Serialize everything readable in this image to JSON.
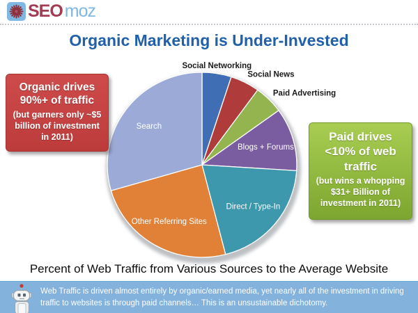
{
  "header": {
    "logo": {
      "icon": "gear-burst",
      "seo": "SEO",
      "moz": "moz"
    }
  },
  "title": "Organic Marketing is Under-Invested",
  "callouts": {
    "organic": {
      "heading": "Organic drives 90%+ of traffic",
      "subtext": "(but garners only ~$5 billion of investment in 2011)",
      "bg_color": "#c64444",
      "border_color": "#a93333"
    },
    "paid": {
      "heading": "Paid drives <10% of web traffic",
      "subtext": "(but wins a whopping $31+ Billion of investment in 2011)",
      "bg_color": "#8fba3f",
      "border_color": "#719729"
    }
  },
  "chart_data": {
    "type": "pie",
    "title": "Percent of Web Traffic from Various Sources to the Average Website",
    "start_angle_deg": 0,
    "direction": "clockwise",
    "legend_position": "none",
    "slices": [
      {
        "label": "Social Networking",
        "value": 5,
        "color": "#3f6eb5",
        "label_placement": "outside"
      },
      {
        "label": "Social News",
        "value": 5,
        "color": "#af3c3b",
        "label_placement": "outside"
      },
      {
        "label": "Paid Advertising",
        "value": 5,
        "color": "#93b44f",
        "label_placement": "outside"
      },
      {
        "label": "Blogs + Forums",
        "value": 11,
        "color": "#7a5da0",
        "label_placement": "inside"
      },
      {
        "label": "Direct / Type-In",
        "value": 20,
        "color": "#3d97ad",
        "label_placement": "inside"
      },
      {
        "label": "Other Referring Sites",
        "value": 24.5,
        "color": "#e08137",
        "label_placement": "inside"
      },
      {
        "label": "Search",
        "value": 29.5,
        "color": "#9baad7",
        "label_placement": "inside"
      }
    ]
  },
  "caption": "Percent of Web Traffic from Various Sources to the Average Website",
  "footer": {
    "mascot": "robot-mascot",
    "text": "Web Traffic is driven almost entirely by organic/earned media, yet nearly all of the investment in driving traffic to websites is through paid channels… This is an unsustainable dichotomy."
  }
}
